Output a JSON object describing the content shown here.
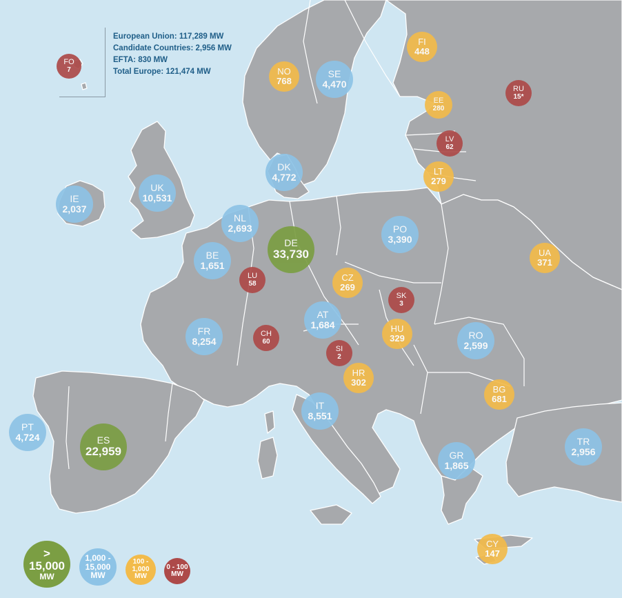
{
  "summary": {
    "eu": "European Union: 117,289 MW",
    "candidate": "Candidate Countries: 2,956 MW",
    "efta": "EFTA: 830 MW",
    "total": "Total Europe: 121,474 MW"
  },
  "colors": {
    "sea": "#cfe6f2",
    "land": "#a7a9ac",
    "border": "#ffffff",
    "over_15000": "#7b9e43",
    "range_1000_15000": "#8dc3e6",
    "range_100_1000": "#f2bb4b",
    "range_0_100": "#ad4a49"
  },
  "countries": [
    {
      "id": "FO",
      "code": "FO",
      "value": "7",
      "cat": "red"
    },
    {
      "id": "FI",
      "code": "FI",
      "value": "448",
      "cat": "yellow"
    },
    {
      "id": "NO",
      "code": "NO",
      "value": "768",
      "cat": "yellow"
    },
    {
      "id": "SE",
      "code": "SE",
      "value": "4,470",
      "cat": "blue"
    },
    {
      "id": "RU",
      "code": "RU",
      "value": "15*",
      "cat": "red"
    },
    {
      "id": "EE",
      "code": "EE",
      "value": "280",
      "cat": "yellow"
    },
    {
      "id": "LV",
      "code": "LV",
      "value": "62",
      "cat": "red"
    },
    {
      "id": "LT",
      "code": "LT",
      "value": "279",
      "cat": "yellow"
    },
    {
      "id": "DK",
      "code": "DK",
      "value": "4,772",
      "cat": "blue"
    },
    {
      "id": "IE",
      "code": "IE",
      "value": "2,037",
      "cat": "blue"
    },
    {
      "id": "UK",
      "code": "UK",
      "value": "10,531",
      "cat": "blue"
    },
    {
      "id": "NL",
      "code": "NL",
      "value": "2,693",
      "cat": "blue"
    },
    {
      "id": "DE",
      "code": "DE",
      "value": "33,730",
      "cat": "green"
    },
    {
      "id": "PO",
      "code": "PO",
      "value": "3,390",
      "cat": "blue"
    },
    {
      "id": "BE",
      "code": "BE",
      "value": "1,651",
      "cat": "blue"
    },
    {
      "id": "LU",
      "code": "LU",
      "value": "58",
      "cat": "red"
    },
    {
      "id": "CZ",
      "code": "CZ",
      "value": "269",
      "cat": "yellow"
    },
    {
      "id": "UA",
      "code": "UA",
      "value": "371",
      "cat": "yellow"
    },
    {
      "id": "SK",
      "code": "SK",
      "value": "3",
      "cat": "red"
    },
    {
      "id": "FR",
      "code": "FR",
      "value": "8,254",
      "cat": "blue"
    },
    {
      "id": "CH",
      "code": "CH",
      "value": "60",
      "cat": "red"
    },
    {
      "id": "AT",
      "code": "AT",
      "value": "1,684",
      "cat": "blue"
    },
    {
      "id": "HU",
      "code": "HU",
      "value": "329",
      "cat": "yellow"
    },
    {
      "id": "RO",
      "code": "RO",
      "value": "2,599",
      "cat": "blue"
    },
    {
      "id": "SI",
      "code": "SI",
      "value": "2",
      "cat": "red"
    },
    {
      "id": "HR",
      "code": "HR",
      "value": "302",
      "cat": "yellow"
    },
    {
      "id": "BG",
      "code": "BG",
      "value": "681",
      "cat": "yellow"
    },
    {
      "id": "PT",
      "code": "PT",
      "value": "4,724",
      "cat": "blue"
    },
    {
      "id": "ES",
      "code": "ES",
      "value": "22,959",
      "cat": "green"
    },
    {
      "id": "IT",
      "code": "IT",
      "value": "8,551",
      "cat": "blue"
    },
    {
      "id": "TR",
      "code": "TR",
      "value": "2,956",
      "cat": "blue"
    },
    {
      "id": "GR",
      "code": "GR",
      "value": "1,865",
      "cat": "blue"
    },
    {
      "id": "CY",
      "code": "CY",
      "value": "147",
      "cat": "yellow"
    }
  ],
  "legend": [
    {
      "cat": "green",
      "lines": [
        ">",
        "15,000",
        "MW"
      ]
    },
    {
      "cat": "blue",
      "lines": [
        "1,000 -",
        "15,000",
        "MW"
      ]
    },
    {
      "cat": "yellow",
      "lines": [
        "100 -",
        "1,000",
        "MW"
      ]
    },
    {
      "cat": "red",
      "lines": [
        "0 - 100",
        "MW"
      ]
    }
  ]
}
